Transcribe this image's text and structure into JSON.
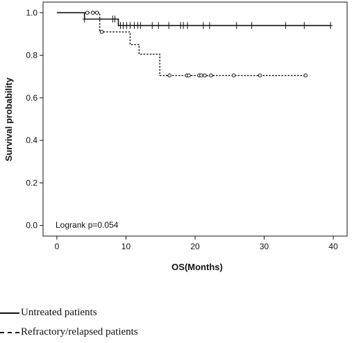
{
  "chart_data": {
    "type": "line",
    "title": "",
    "xlabel": "OS(Months)",
    "ylabel": "Survival probability",
    "xlim": [
      -2,
      42
    ],
    "ylim": [
      -0.05,
      1.05
    ],
    "xticks": [
      0,
      10,
      20,
      30,
      40
    ],
    "yticks": [
      0.0,
      0.2,
      0.4,
      0.6,
      0.8,
      1.0
    ],
    "xtick_labels": [
      "0",
      "10",
      "20",
      "30",
      "40"
    ],
    "ytick_labels": [
      "0.0",
      "0.2",
      "0.4",
      "0.6",
      "0.8",
      "1.0"
    ],
    "annotation": "Logrank p=0.054",
    "grid": false,
    "series": [
      {
        "name": "Untreated patients",
        "style": "solid",
        "censor_marker": "plus",
        "steps": [
          [
            0,
            1.0
          ],
          [
            4,
            1.0
          ],
          [
            4,
            0.97
          ],
          [
            8.9,
            0.97
          ],
          [
            8.9,
            0.94
          ],
          [
            39.6,
            0.94
          ]
        ],
        "censored": [
          [
            4,
            0.97
          ],
          [
            8.1,
            0.97
          ],
          [
            8.4,
            0.97
          ],
          [
            9.2,
            0.94
          ],
          [
            9.6,
            0.94
          ],
          [
            10.1,
            0.94
          ],
          [
            10.6,
            0.94
          ],
          [
            11.2,
            0.94
          ],
          [
            11.7,
            0.94
          ],
          [
            12.1,
            0.94
          ],
          [
            13.8,
            0.94
          ],
          [
            14.7,
            0.94
          ],
          [
            16.2,
            0.94
          ],
          [
            17.9,
            0.94
          ],
          [
            18.3,
            0.94
          ],
          [
            18.9,
            0.94
          ],
          [
            21.2,
            0.94
          ],
          [
            22.1,
            0.94
          ],
          [
            26,
            0.94
          ],
          [
            28.2,
            0.94
          ],
          [
            33.1,
            0.94
          ],
          [
            35.8,
            0.94
          ],
          [
            39.6,
            0.94
          ]
        ]
      },
      {
        "name": "Refractory/relapsed patients",
        "style": "dashed",
        "censor_marker": "circle",
        "steps": [
          [
            0,
            1.0
          ],
          [
            6.2,
            1.0
          ],
          [
            6.2,
            0.91
          ],
          [
            10.6,
            0.91
          ],
          [
            10.6,
            0.85
          ],
          [
            11.9,
            0.85
          ],
          [
            11.9,
            0.805
          ],
          [
            14.9,
            0.805
          ],
          [
            14.9,
            0.705
          ],
          [
            36,
            0.705
          ]
        ],
        "censored": [
          [
            4.4,
            1.0
          ],
          [
            5.2,
            1.0
          ],
          [
            5.8,
            1.0
          ],
          [
            6.5,
            0.91
          ],
          [
            16.3,
            0.705
          ],
          [
            18.8,
            0.705
          ],
          [
            19.1,
            0.705
          ],
          [
            20.6,
            0.705
          ],
          [
            20.9,
            0.705
          ],
          [
            21.4,
            0.705
          ],
          [
            22.3,
            0.705
          ],
          [
            25.6,
            0.705
          ],
          [
            29.4,
            0.705
          ],
          [
            36,
            0.705
          ]
        ]
      }
    ]
  }
}
